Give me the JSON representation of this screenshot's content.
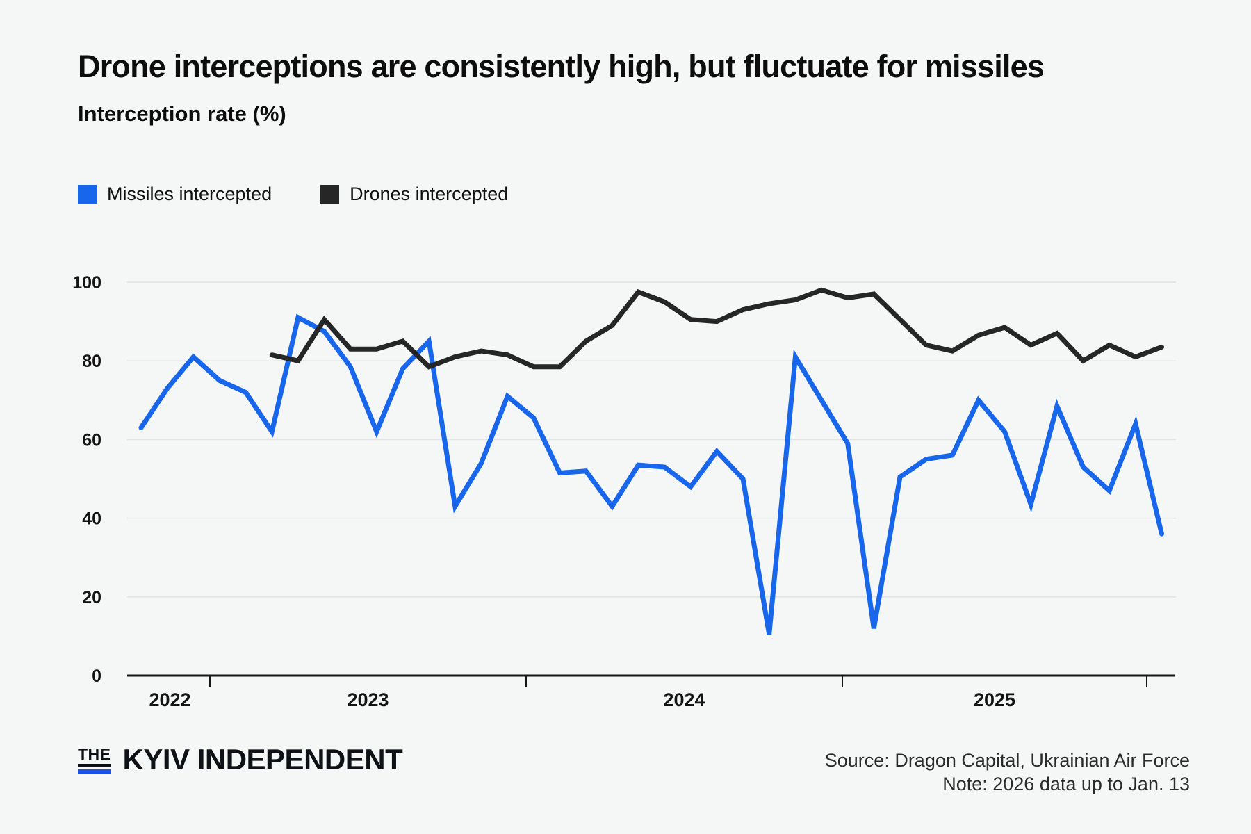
{
  "header": {
    "title": "Drone interceptions are consistently high, but fluctuate for missiles",
    "subtitle": "Interception rate (%)"
  },
  "legend": [
    {
      "label": "Missiles intercepted",
      "color": "#1766EC"
    },
    {
      "label": "Drones intercepted",
      "color": "#262626"
    }
  ],
  "chart_data": {
    "type": "line",
    "title": "Drone interceptions are consistently high, but fluctuate for missiles",
    "ylabel": "Interception rate (%)",
    "ylim": [
      0,
      100
    ],
    "yticks": [
      0,
      20,
      40,
      60,
      80,
      100
    ],
    "grid": "horizontal",
    "xtick_year_labels": [
      "2022",
      "2023",
      "2024",
      "2025"
    ],
    "months": [
      "Oct 2022",
      "Nov 2022",
      "Dec 2022",
      "Jan 2023",
      "Feb 2023",
      "Mar 2023",
      "Apr 2023",
      "May 2023",
      "Jun 2023",
      "Jul 2023",
      "Aug 2023",
      "Sep 2023",
      "Oct 2023",
      "Nov 2023",
      "Dec 2023",
      "Jan 2024",
      "Feb 2024",
      "Mar 2024",
      "Apr 2024",
      "May 2024",
      "Jun 2024",
      "Jul 2024",
      "Aug 2024",
      "Sep 2024",
      "Oct 2024",
      "Nov 2024",
      "Dec 2024",
      "Jan 2025",
      "Feb 2025",
      "Mar 2025",
      "Apr 2025",
      "May 2025",
      "Jun 2025",
      "Jul 2025",
      "Aug 2025",
      "Sep 2025",
      "Oct 2025",
      "Nov 2025",
      "Dec 2025",
      "Jan 2026"
    ],
    "series": [
      {
        "name": "Missiles intercepted",
        "color": "#1766EC",
        "start_index": 0,
        "values": [
          63,
          73,
          81,
          75,
          72,
          62,
          91,
          87.5,
          78.5,
          62,
          78,
          85,
          43,
          54,
          71,
          65.5,
          51.5,
          52,
          43,
          53.5,
          53,
          48,
          57,
          50,
          10.5,
          81,
          70,
          59,
          12,
          50.5,
          55,
          56,
          70,
          62,
          43.5,
          68.5,
          53,
          47,
          64,
          36
        ]
      },
      {
        "name": "Drones intercepted",
        "color": "#262626",
        "start_index": 5,
        "values": [
          81.5,
          80,
          90.5,
          83,
          83,
          85,
          78.5,
          81,
          82.5,
          81.5,
          78.5,
          78.5,
          85,
          89,
          97.5,
          95,
          90.5,
          90,
          93,
          94.5,
          95.5,
          98,
          96,
          97,
          90.5,
          84,
          82.5,
          86.5,
          88.5,
          84,
          87,
          80,
          84,
          81,
          83.5
        ]
      }
    ]
  },
  "footer": {
    "logo_the": "THE",
    "logo_name": "KYIV INDEPENDENT",
    "logo_accent": "#1b51e5",
    "source_line1": "Source: Dragon Capital, Ukrainian Air Force",
    "source_line2": "Note: 2026 data up to Jan. 13"
  }
}
